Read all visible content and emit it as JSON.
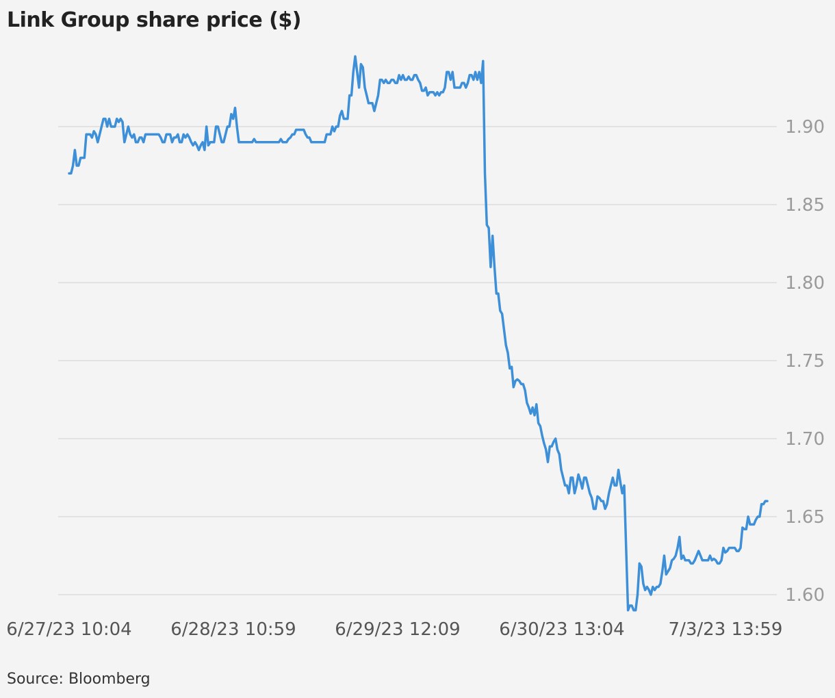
{
  "chart_data": {
    "type": "line",
    "title": "Link Group share price ($)",
    "xlabel": "",
    "ylabel": "",
    "ylim": [
      1.59,
      1.95
    ],
    "y_ticks": [
      "1.60",
      "1.65",
      "1.70",
      "1.75",
      "1.80",
      "1.85",
      "1.90"
    ],
    "x_tick_labels": [
      "6/27/23 10:04",
      "6/28/23 10:59",
      "6/29/23 12:09",
      "6/30/23 13:04",
      "7/3/23 13:59"
    ],
    "grid": true,
    "series": [
      {
        "color": "#3d8fd8",
        "values": [
          1.87,
          1.87,
          1.875,
          1.885,
          1.875,
          1.875,
          1.88,
          1.88,
          1.88,
          1.895,
          1.895,
          1.895,
          1.893,
          1.897,
          1.895,
          1.89,
          1.895,
          1.9,
          1.905,
          1.905,
          1.9,
          1.905,
          1.9,
          1.9,
          1.9,
          1.905,
          1.903,
          1.905,
          1.903,
          1.89,
          1.895,
          1.9,
          1.895,
          1.893,
          1.895,
          1.89,
          1.89,
          1.893,
          1.893,
          1.89,
          1.895,
          1.895,
          1.895,
          1.895,
          1.895,
          1.895,
          1.895,
          1.895,
          1.893,
          1.89,
          1.89,
          1.895,
          1.895,
          1.895,
          1.89,
          1.893,
          1.893,
          1.895,
          1.89,
          1.89,
          1.895,
          1.893,
          1.895,
          1.893,
          1.89,
          1.888,
          1.89,
          1.888,
          1.885,
          1.888,
          1.89,
          1.885,
          1.9,
          1.888,
          1.89,
          1.89,
          1.89,
          1.9,
          1.9,
          1.895,
          1.89,
          1.89,
          1.895,
          1.9,
          1.9,
          1.908,
          1.905,
          1.912,
          1.9,
          1.89,
          1.89,
          1.89,
          1.89,
          1.89,
          1.89,
          1.89,
          1.89,
          1.892,
          1.89,
          1.89,
          1.89,
          1.89,
          1.89,
          1.89,
          1.89,
          1.89,
          1.89,
          1.89,
          1.89,
          1.89,
          1.89,
          1.892,
          1.89,
          1.89,
          1.89,
          1.892,
          1.893,
          1.895,
          1.895,
          1.898,
          1.898,
          1.898,
          1.898,
          1.898,
          1.895,
          1.893,
          1.893,
          1.89,
          1.89,
          1.89,
          1.89,
          1.89,
          1.89,
          1.89,
          1.89,
          1.895,
          1.895,
          1.895,
          1.9,
          1.897,
          1.9,
          1.9,
          1.907,
          1.91,
          1.905,
          1.905,
          1.905,
          1.92,
          1.92,
          1.935,
          1.945,
          1.935,
          1.925,
          1.94,
          1.938,
          1.925,
          1.92,
          1.915,
          1.915,
          1.915,
          1.91,
          1.915,
          1.92,
          1.93,
          1.93,
          1.928,
          1.93,
          1.928,
          1.928,
          1.93,
          1.93,
          1.928,
          1.928,
          1.933,
          1.93,
          1.933,
          1.93,
          1.93,
          1.932,
          1.93,
          1.93,
          1.933,
          1.933,
          1.93,
          1.928,
          1.923,
          1.923,
          1.925,
          1.92,
          1.922,
          1.922,
          1.922,
          1.92,
          1.922,
          1.92,
          1.922,
          1.922,
          1.925,
          1.935,
          1.935,
          1.93,
          1.935,
          1.925,
          1.925,
          1.925,
          1.925,
          1.928,
          1.928,
          1.925,
          1.928,
          1.933,
          1.933,
          1.93,
          1.935,
          1.93,
          1.935,
          1.928,
          1.942,
          1.87,
          1.837,
          1.835,
          1.81,
          1.83,
          1.81,
          1.793,
          1.793,
          1.782,
          1.78,
          1.77,
          1.76,
          1.755,
          1.745,
          1.746,
          1.733,
          1.737,
          1.738,
          1.737,
          1.735,
          1.735,
          1.731,
          1.723,
          1.72,
          1.716,
          1.72,
          1.715,
          1.722,
          1.71,
          1.708,
          1.702,
          1.697,
          1.693,
          1.685,
          1.695,
          1.695,
          1.698,
          1.7,
          1.693,
          1.69,
          1.68,
          1.675,
          1.67,
          1.67,
          1.665,
          1.675,
          1.675,
          1.665,
          1.67,
          1.677,
          1.673,
          1.668,
          1.675,
          1.675,
          1.67,
          1.665,
          1.662,
          1.655,
          1.655,
          1.663,
          1.662,
          1.66,
          1.66,
          1.655,
          1.658,
          1.665,
          1.67,
          1.675,
          1.67,
          1.67,
          1.68,
          1.672,
          1.665,
          1.67,
          1.63,
          1.59,
          1.593,
          1.593,
          1.59,
          1.59,
          1.6,
          1.62,
          1.618,
          1.607,
          1.603,
          1.605,
          1.603,
          1.6,
          1.605,
          1.603,
          1.605,
          1.605,
          1.607,
          1.615,
          1.625,
          1.613,
          1.615,
          1.617,
          1.622,
          1.623,
          1.625,
          1.63,
          1.637,
          1.623,
          1.625,
          1.622,
          1.622,
          1.622,
          1.62,
          1.62,
          1.622,
          1.625,
          1.628,
          1.625,
          1.622,
          1.622,
          1.622,
          1.622,
          1.625,
          1.622,
          1.623,
          1.622,
          1.62,
          1.62,
          1.622,
          1.63,
          1.627,
          1.628,
          1.63,
          1.63,
          1.63,
          1.63,
          1.628,
          1.628,
          1.63,
          1.643,
          1.642,
          1.642,
          1.65,
          1.645,
          1.645,
          1.645,
          1.648,
          1.65,
          1.65,
          1.658,
          1.658,
          1.66,
          1.66
        ]
      }
    ],
    "source": "Source: Bloomberg"
  }
}
